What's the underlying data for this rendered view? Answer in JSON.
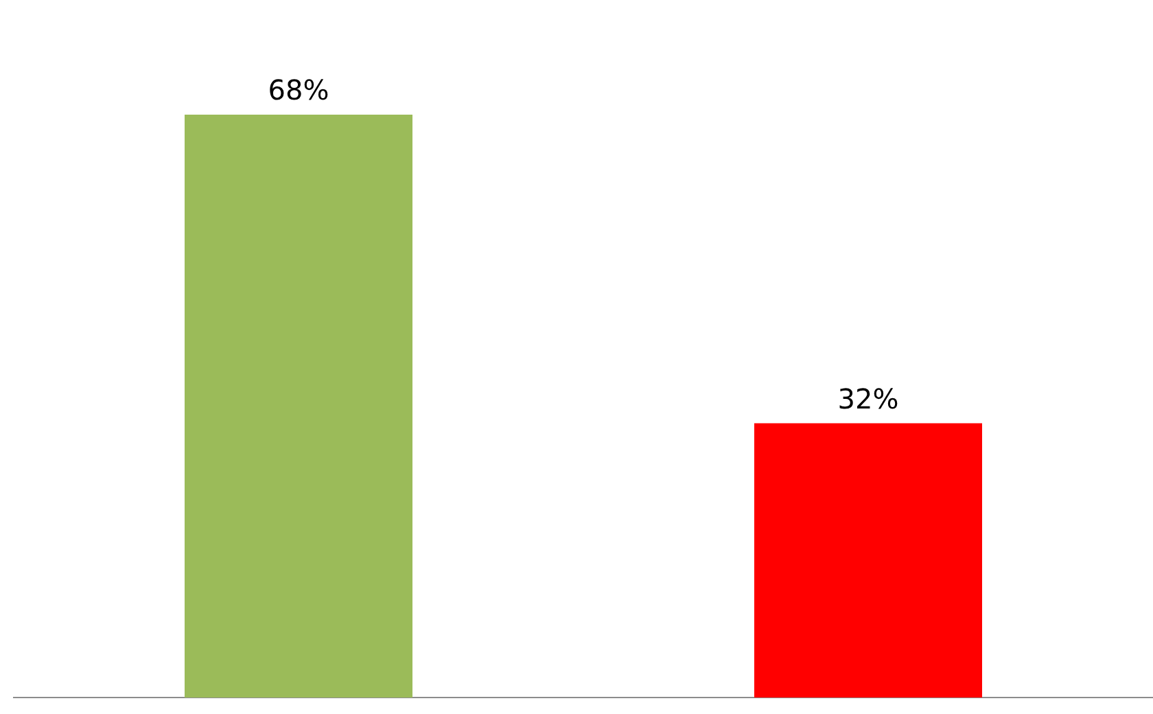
{
  "chart_data": {
    "type": "bar",
    "categories": [
      null,
      null
    ],
    "values": [
      68,
      32
    ],
    "colors": [
      "#9bbb59",
      "#ff0000"
    ],
    "value_labels": [
      "68%",
      "32%"
    ],
    "tick_labels": false,
    "grid": false,
    "legend": false
  }
}
